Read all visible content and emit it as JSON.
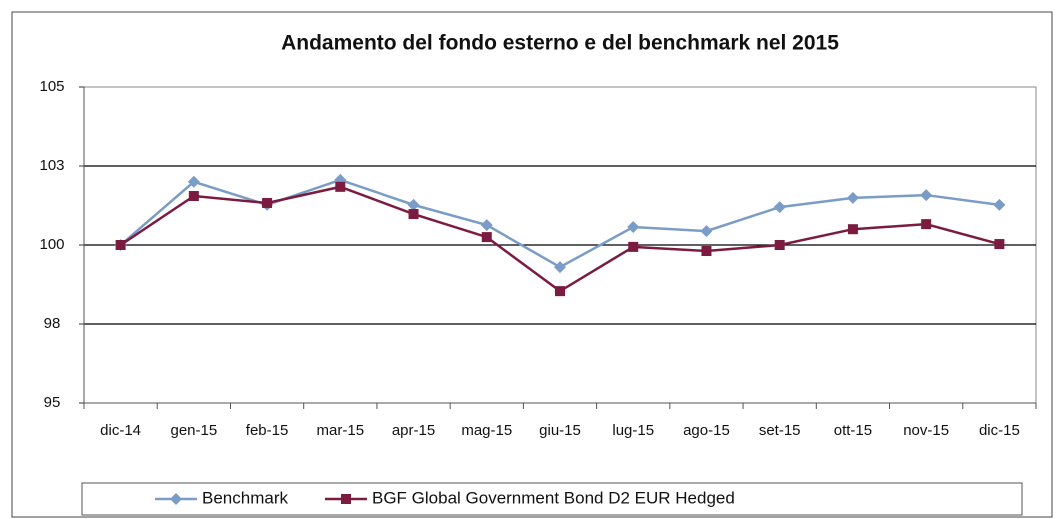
{
  "chart_data": {
    "type": "line",
    "title": "Andamento del fondo esterno e del benchmark nel 2015",
    "categories": [
      "dic-14",
      "gen-15",
      "feb-15",
      "mar-15",
      "apr-15",
      "mag-15",
      "giu-15",
      "lug-15",
      "ago-15",
      "set-15",
      "ott-15",
      "nov-15",
      "dic-15"
    ],
    "series": [
      {
        "name": "Benchmark",
        "color": "#7a9cc6",
        "marker": "diamond",
        "values": [
          100,
          102,
          101.27,
          102.06,
          101.27,
          100.63,
          99.3,
          100.57,
          100.44,
          101.2,
          101.49,
          101.58,
          101.27
        ]
      },
      {
        "name": "BGF Global Government Bond D2 EUR Hedged",
        "color": "#7b1b3f",
        "marker": "square",
        "values": [
          100,
          101.55,
          101.33,
          101.84,
          100.98,
          100.25,
          98.54,
          99.94,
          99.81,
          100,
          100.5,
          100.66,
          100.03
        ]
      }
    ],
    "ylim": [
      95,
      105
    ],
    "yticks": [
      95,
      {
        "value": 97.5,
        "label": "98"
      },
      100,
      {
        "value": 102.5,
        "label": "103"
      },
      105
    ],
    "grid": true,
    "legend": "bottom"
  }
}
